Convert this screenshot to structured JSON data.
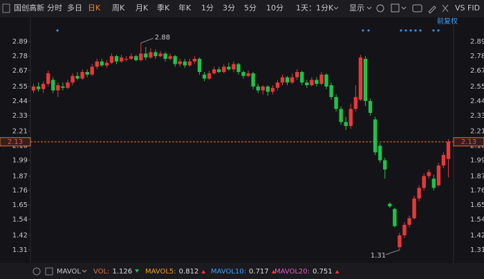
{
  "stock": "国创高新",
  "toolbar": {
    "tabs": [
      "分时",
      "多日",
      "日K",
      "周K",
      "月K",
      "季K",
      "年K",
      "1分",
      "3分",
      "5分",
      "10分",
      "1天：1分K"
    ],
    "display": "显示",
    "compare": "VS FID",
    "adjust": "前复权"
  },
  "chart_data": {
    "type": "candlestick",
    "up_color": "#e8383a",
    "down_color": "#1fc24a",
    "ylim": [
      1.22,
      2.97
    ],
    "yticks": [
      2.89,
      2.78,
      2.67,
      2.55,
      2.44,
      2.33,
      2.21,
      {
        "value": 2.1,
        "label": "2.10"
      },
      1.99,
      1.87,
      1.76,
      1.65,
      1.54,
      1.42,
      1.31
    ],
    "open": [
      2.52,
      2.55,
      2.53,
      2.57,
      2.6,
      2.52,
      2.55,
      2.54,
      2.58,
      2.63,
      2.61,
      2.66,
      2.64,
      2.7,
      2.74,
      2.71,
      2.73,
      2.78,
      2.74,
      2.76,
      2.76,
      2.78,
      2.75,
      2.8,
      2.77,
      2.81,
      2.78,
      2.8,
      2.76,
      2.78,
      2.72,
      2.74,
      2.71,
      2.74,
      2.76,
      2.64,
      2.61,
      2.65,
      2.68,
      2.66,
      2.7,
      2.68,
      2.72,
      2.66,
      2.63,
      2.65,
      2.55,
      2.52,
      2.55,
      2.51,
      2.54,
      2.58,
      2.62,
      2.58,
      2.62,
      2.66,
      2.58,
      2.56,
      2.6,
      2.57,
      2.64,
      2.56,
      2.47,
      2.38,
      2.28,
      2.25,
      2.38,
      2.45,
      2.76,
      2.44,
      2.3,
      2.1,
      1.99,
      1.66,
      1.62,
      1.33,
      1.42,
      1.5,
      1.55,
      1.7,
      1.78,
      1.87,
      1.85,
      1.8,
      1.95,
      2.0
    ],
    "high": [
      2.57,
      2.58,
      2.59,
      2.67,
      2.62,
      2.58,
      2.58,
      2.6,
      2.65,
      2.66,
      2.68,
      2.68,
      2.72,
      2.76,
      2.76,
      2.75,
      2.8,
      2.79,
      2.79,
      2.78,
      2.8,
      2.79,
      2.88,
      2.85,
      2.84,
      2.83,
      2.82,
      2.81,
      2.8,
      2.79,
      2.76,
      2.76,
      2.76,
      2.78,
      2.77,
      2.66,
      2.67,
      2.7,
      2.7,
      2.72,
      2.73,
      2.74,
      2.73,
      2.67,
      2.67,
      2.66,
      2.57,
      2.56,
      2.56,
      2.56,
      2.6,
      2.64,
      2.63,
      2.65,
      2.68,
      2.67,
      2.6,
      2.62,
      2.62,
      2.66,
      2.65,
      2.58,
      2.49,
      2.4,
      2.32,
      2.42,
      2.56,
      2.79,
      2.78,
      2.46,
      2.32,
      2.12,
      2.01,
      1.67,
      1.63,
      1.44,
      1.52,
      1.57,
      1.72,
      1.8,
      1.89,
      1.92,
      1.88,
      1.97,
      2.05,
      2.15
    ],
    "low": [
      2.5,
      2.51,
      2.5,
      2.55,
      2.5,
      2.47,
      2.52,
      2.53,
      2.56,
      2.6,
      2.6,
      2.62,
      2.63,
      2.68,
      2.7,
      2.69,
      2.72,
      2.72,
      2.73,
      2.74,
      2.75,
      2.74,
      2.74,
      2.75,
      2.76,
      2.76,
      2.77,
      2.74,
      2.75,
      2.7,
      2.7,
      2.69,
      2.7,
      2.72,
      2.64,
      2.59,
      2.6,
      2.64,
      2.65,
      2.65,
      2.67,
      2.66,
      2.64,
      2.61,
      2.62,
      2.53,
      2.5,
      2.49,
      2.48,
      2.49,
      2.52,
      2.56,
      2.56,
      2.57,
      2.6,
      2.56,
      2.54,
      2.55,
      2.55,
      2.56,
      2.53,
      2.45,
      2.36,
      2.26,
      2.22,
      2.23,
      2.36,
      2.44,
      2.4,
      2.33,
      2.03,
      1.97,
      1.85,
      1.63,
      1.48,
      1.31,
      1.4,
      1.48,
      1.54,
      1.68,
      1.76,
      1.85,
      1.76,
      1.79,
      1.93,
      1.86
    ],
    "close": [
      2.55,
      2.53,
      2.57,
      2.65,
      2.52,
      2.56,
      2.54,
      2.58,
      2.63,
      2.61,
      2.66,
      2.64,
      2.7,
      2.74,
      2.71,
      2.73,
      2.78,
      2.74,
      2.77,
      2.76,
      2.78,
      2.75,
      2.8,
      2.77,
      2.81,
      2.78,
      2.8,
      2.76,
      2.78,
      2.72,
      2.74,
      2.71,
      2.74,
      2.76,
      2.66,
      2.61,
      2.65,
      2.68,
      2.66,
      2.7,
      2.68,
      2.72,
      2.66,
      2.63,
      2.65,
      2.55,
      2.52,
      2.55,
      2.51,
      2.54,
      2.58,
      2.62,
      2.58,
      2.62,
      2.66,
      2.58,
      2.56,
      2.6,
      2.57,
      2.64,
      2.55,
      2.47,
      2.38,
      2.28,
      2.25,
      2.38,
      2.47,
      2.77,
      2.44,
      2.35,
      2.05,
      1.99,
      1.92,
      1.64,
      1.49,
      1.42,
      1.5,
      1.55,
      1.7,
      1.78,
      1.87,
      1.9,
      1.78,
      1.95,
      2.03,
      2.13
    ],
    "max_annotation": {
      "value": 2.88,
      "index": 22
    },
    "min_annotation": {
      "value": 1.31,
      "index": 75
    },
    "reference_line": {
      "value": 2.13,
      "color": "#e8743b"
    }
  },
  "indicator": {
    "name": "MAVOL",
    "items": [
      {
        "label": "VOL:",
        "value": "1.126",
        "color": "#e8743b"
      },
      {
        "label": "MAVOL5:",
        "value": "0.812",
        "color": "#f0a020"
      },
      {
        "label": "MAVOL10:",
        "value": "0.717",
        "color": "#3aa0ff"
      },
      {
        "label": "MAVOL20:",
        "value": "0.751",
        "color": "#e060c0"
      }
    ]
  }
}
